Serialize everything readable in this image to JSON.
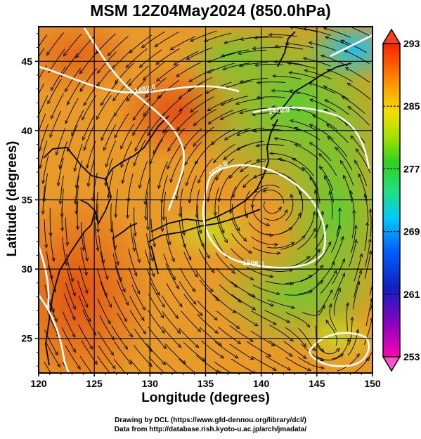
{
  "title": "MSM 12Z04May2024 (850.0hPa)",
  "map": {
    "xlabel": "Longitude (degrees)",
    "ylabel": "Latitude  (degrees)",
    "lon_range": [
      120,
      150
    ],
    "lat_range": [
      22.5,
      47.5
    ],
    "lon_ticks": [
      "120",
      "125",
      "130",
      "135",
      "140",
      "145",
      "150"
    ],
    "lat_ticks": [
      "25",
      "30",
      "35",
      "40",
      "45"
    ],
    "contour_labels": [
      "1492.0",
      "1500.0",
      "1508.0",
      "1476.0"
    ],
    "grid": true,
    "field_colors": {
      "warm": "#e8501a",
      "mid": "#e8b020",
      "cool": "#60d030",
      "cold": "#20c8d8"
    }
  },
  "colorbar": {
    "min": 253,
    "max": 293,
    "tick_labels": [
      "293",
      "285",
      "277",
      "269",
      "261",
      "253"
    ],
    "colors": [
      "#ff00b0",
      "#9000c0",
      "#1020c0",
      "#0060ff",
      "#00c8ff",
      "#20e080",
      "#30d020",
      "#a0e000",
      "#f0e000",
      "#ffa000",
      "#ff6000",
      "#ff2000"
    ]
  },
  "credits": {
    "line1": "Drawing by DCL (https://www.gfd-dennou.org/library/dcl/)",
    "line2": "Data from http://database.rish.kyoto-u.ac.jp/arch/jmadata/"
  }
}
